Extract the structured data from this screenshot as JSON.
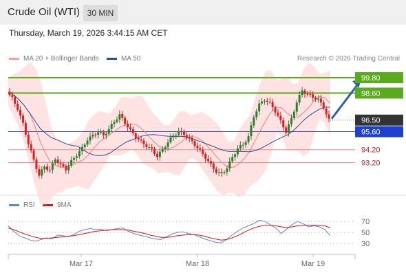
{
  "header": {
    "title": "Crude Oil (WTI)",
    "timeframe": "30 MIN",
    "datetime": "Thursday, March 19, 2026 3:44:15 AM CET"
  },
  "legend": {
    "main": [
      {
        "label": "MA 20 + Bollinger Bands",
        "color": "#f4a0a0"
      },
      {
        "label": "MA 50",
        "color": "#2a4f8f"
      }
    ],
    "credit": "Research © 2026 Trading Central",
    "indicator": [
      {
        "label": "RSI",
        "color": "#5b85d6"
      },
      {
        "label": "9MA",
        "color": "#e01010"
      }
    ]
  },
  "colors": {
    "resistance": "#5aaa1e",
    "support": "#1f3fcf",
    "minor": "#f08a8a",
    "up": "#2f7d2f",
    "down": "#d42020",
    "arrow": "#2f5fa8",
    "bands": "#ffd8d8"
  },
  "chart_data": [
    {
      "type": "candlestick",
      "x_labels": [
        "Mar 17",
        "Mar 18",
        "Mar 19"
      ],
      "ylim": [
        91.3,
        100.6
      ],
      "levels": [
        {
          "value": 99.8,
          "label": "99.80",
          "kind": "resistance"
        },
        {
          "value": 98.6,
          "label": "98.60",
          "kind": "resistance"
        },
        {
          "value": 96.5,
          "label": "96.50",
          "kind": "current"
        },
        {
          "value": 95.6,
          "label": "95.60",
          "kind": "support"
        },
        {
          "value": 94.2,
          "label": "94.20",
          "kind": "minor"
        },
        {
          "value": 93.2,
          "label": "93.20",
          "kind": "minor"
        }
      ],
      "close_path": [
        98.7,
        98.2,
        97.4,
        96.2,
        94.7,
        93.4,
        92.2,
        92.9,
        92.6,
        93.5,
        93.0,
        92.7,
        93.3,
        93.8,
        94.3,
        95.0,
        95.3,
        95.6,
        95.3,
        95.8,
        96.4,
        96.9,
        96.3,
        95.7,
        95.2,
        94.8,
        94.5,
        94.2,
        93.7,
        94.2,
        94.8,
        95.3,
        95.6,
        95.4,
        95.0,
        94.6,
        94.1,
        93.6,
        93.0,
        92.5,
        92.3,
        92.8,
        93.6,
        94.3,
        94.6,
        95.2,
        96.8,
        97.7,
        98.1,
        97.8,
        97.2,
        96.4,
        95.6,
        96.6,
        97.9,
        98.8,
        98.5,
        98.3,
        98.1,
        97.5,
        96.5
      ],
      "forecast_target": 99.8
    },
    {
      "type": "line",
      "series": [
        {
          "name": "RSI"
        },
        {
          "name": "9MA"
        }
      ],
      "y_ticks": [
        70,
        50,
        30
      ],
      "ylim": [
        20,
        80
      ],
      "rsi": [
        62,
        52,
        44,
        40,
        36,
        34,
        37,
        40,
        38,
        45,
        44,
        42,
        46,
        52,
        55,
        57,
        55,
        56,
        53,
        55,
        57,
        58,
        52,
        48,
        45,
        43,
        40,
        38,
        37,
        42,
        47,
        50,
        51,
        48,
        46,
        42,
        38,
        35,
        32,
        31,
        37,
        45,
        52,
        58,
        62,
        66,
        72,
        70,
        64,
        58,
        48,
        56,
        64,
        70,
        66,
        60,
        62,
        60,
        55,
        44
      ],
      "ma9": [
        58,
        55,
        51,
        47,
        44,
        41,
        39,
        39,
        40,
        41,
        42,
        43,
        44,
        46,
        48,
        50,
        52,
        53,
        54,
        55,
        55,
        55,
        54,
        52,
        50,
        48,
        45,
        43,
        41,
        41,
        42,
        44,
        45,
        46,
        46,
        45,
        43,
        40,
        38,
        36,
        37,
        40,
        44,
        49,
        54,
        58,
        61,
        63,
        63,
        62,
        60,
        59,
        60,
        62,
        63,
        63,
        63,
        63,
        62,
        58
      ]
    }
  ]
}
